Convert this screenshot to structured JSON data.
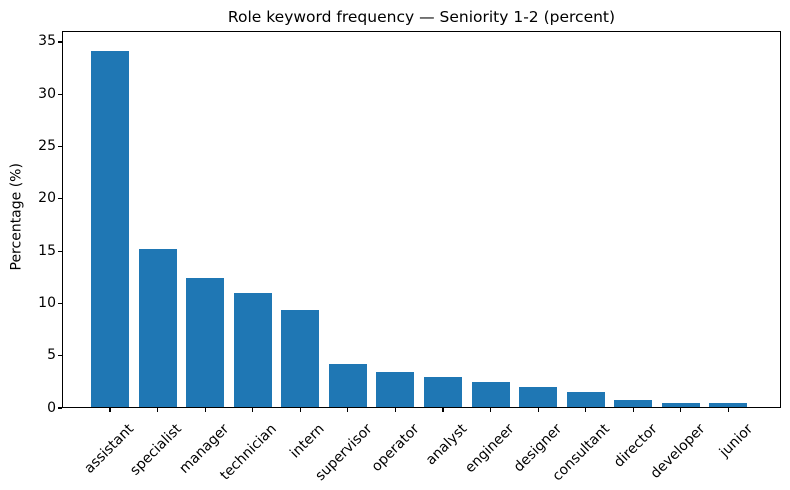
{
  "chart_data": {
    "type": "bar",
    "title": "Role keyword frequency — Seniority 1-2 (percent)",
    "xlabel": "",
    "ylabel": "Percentage (%)",
    "categories": [
      "assistant",
      "specialist",
      "manager",
      "technician",
      "intern",
      "supervisor",
      "operator",
      "analyst",
      "engineer",
      "designer",
      "consultant",
      "director",
      "developer",
      "junior"
    ],
    "values": [
      34.1,
      15.2,
      12.4,
      11.0,
      9.4,
      4.2,
      3.4,
      3.0,
      2.5,
      2.0,
      1.5,
      0.8,
      0.5,
      0.5
    ],
    "ylim": [
      0,
      36.05
    ],
    "yticks": [
      0,
      5,
      10,
      15,
      20,
      25,
      30,
      35
    ],
    "x_tick_rotation_deg": 45,
    "bar_color": "#1f77b4",
    "grid": false,
    "legend_position": "none"
  }
}
